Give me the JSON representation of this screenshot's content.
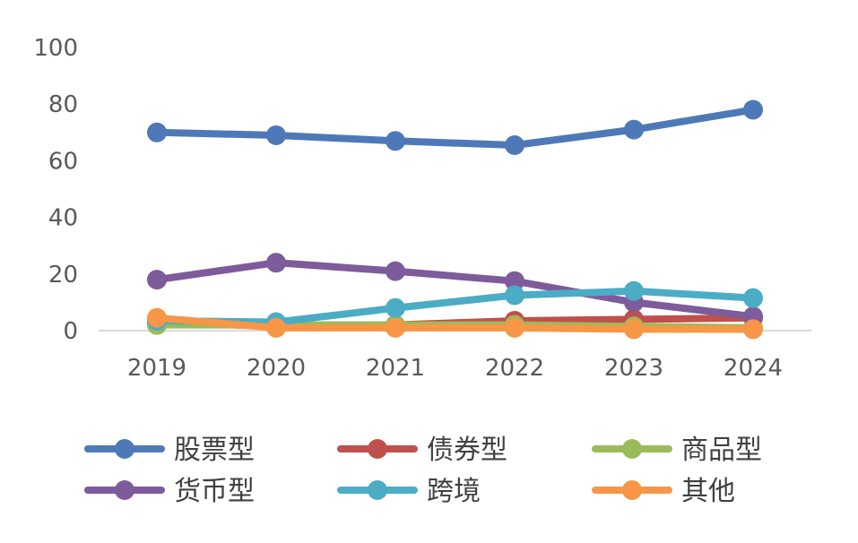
{
  "chart_data": {
    "type": "line",
    "title": "",
    "xlabel": "",
    "ylabel": "",
    "categories": [
      "2019",
      "2020",
      "2021",
      "2022",
      "2023",
      "2024"
    ],
    "ylim": [
      0,
      100
    ],
    "yticks": [
      0,
      20,
      40,
      60,
      80,
      100
    ],
    "grid": false,
    "legend_position": "bottom",
    "series": [
      {
        "name": "股票型",
        "color": "#4e79b8",
        "values": [
          70,
          69,
          67,
          65.5,
          71,
          78
        ]
      },
      {
        "name": "债券型",
        "color": "#c0504d",
        "values": [
          3,
          1.5,
          2,
          3.5,
          4,
          4.5
        ]
      },
      {
        "name": "商品型",
        "color": "#9bbb59",
        "values": [
          2,
          2,
          2,
          2,
          1.5,
          1
        ]
      },
      {
        "name": "货币型",
        "color": "#7e5b9a",
        "values": [
          18,
          24,
          21,
          17.5,
          10,
          5
        ]
      },
      {
        "name": "跨境",
        "color": "#4bacc6",
        "values": [
          3.5,
          3,
          8,
          12.5,
          14,
          11.5
        ]
      },
      {
        "name": "其他",
        "color": "#f79646",
        "values": [
          4.5,
          1,
          1,
          1,
          0.5,
          0.5
        ]
      }
    ]
  }
}
